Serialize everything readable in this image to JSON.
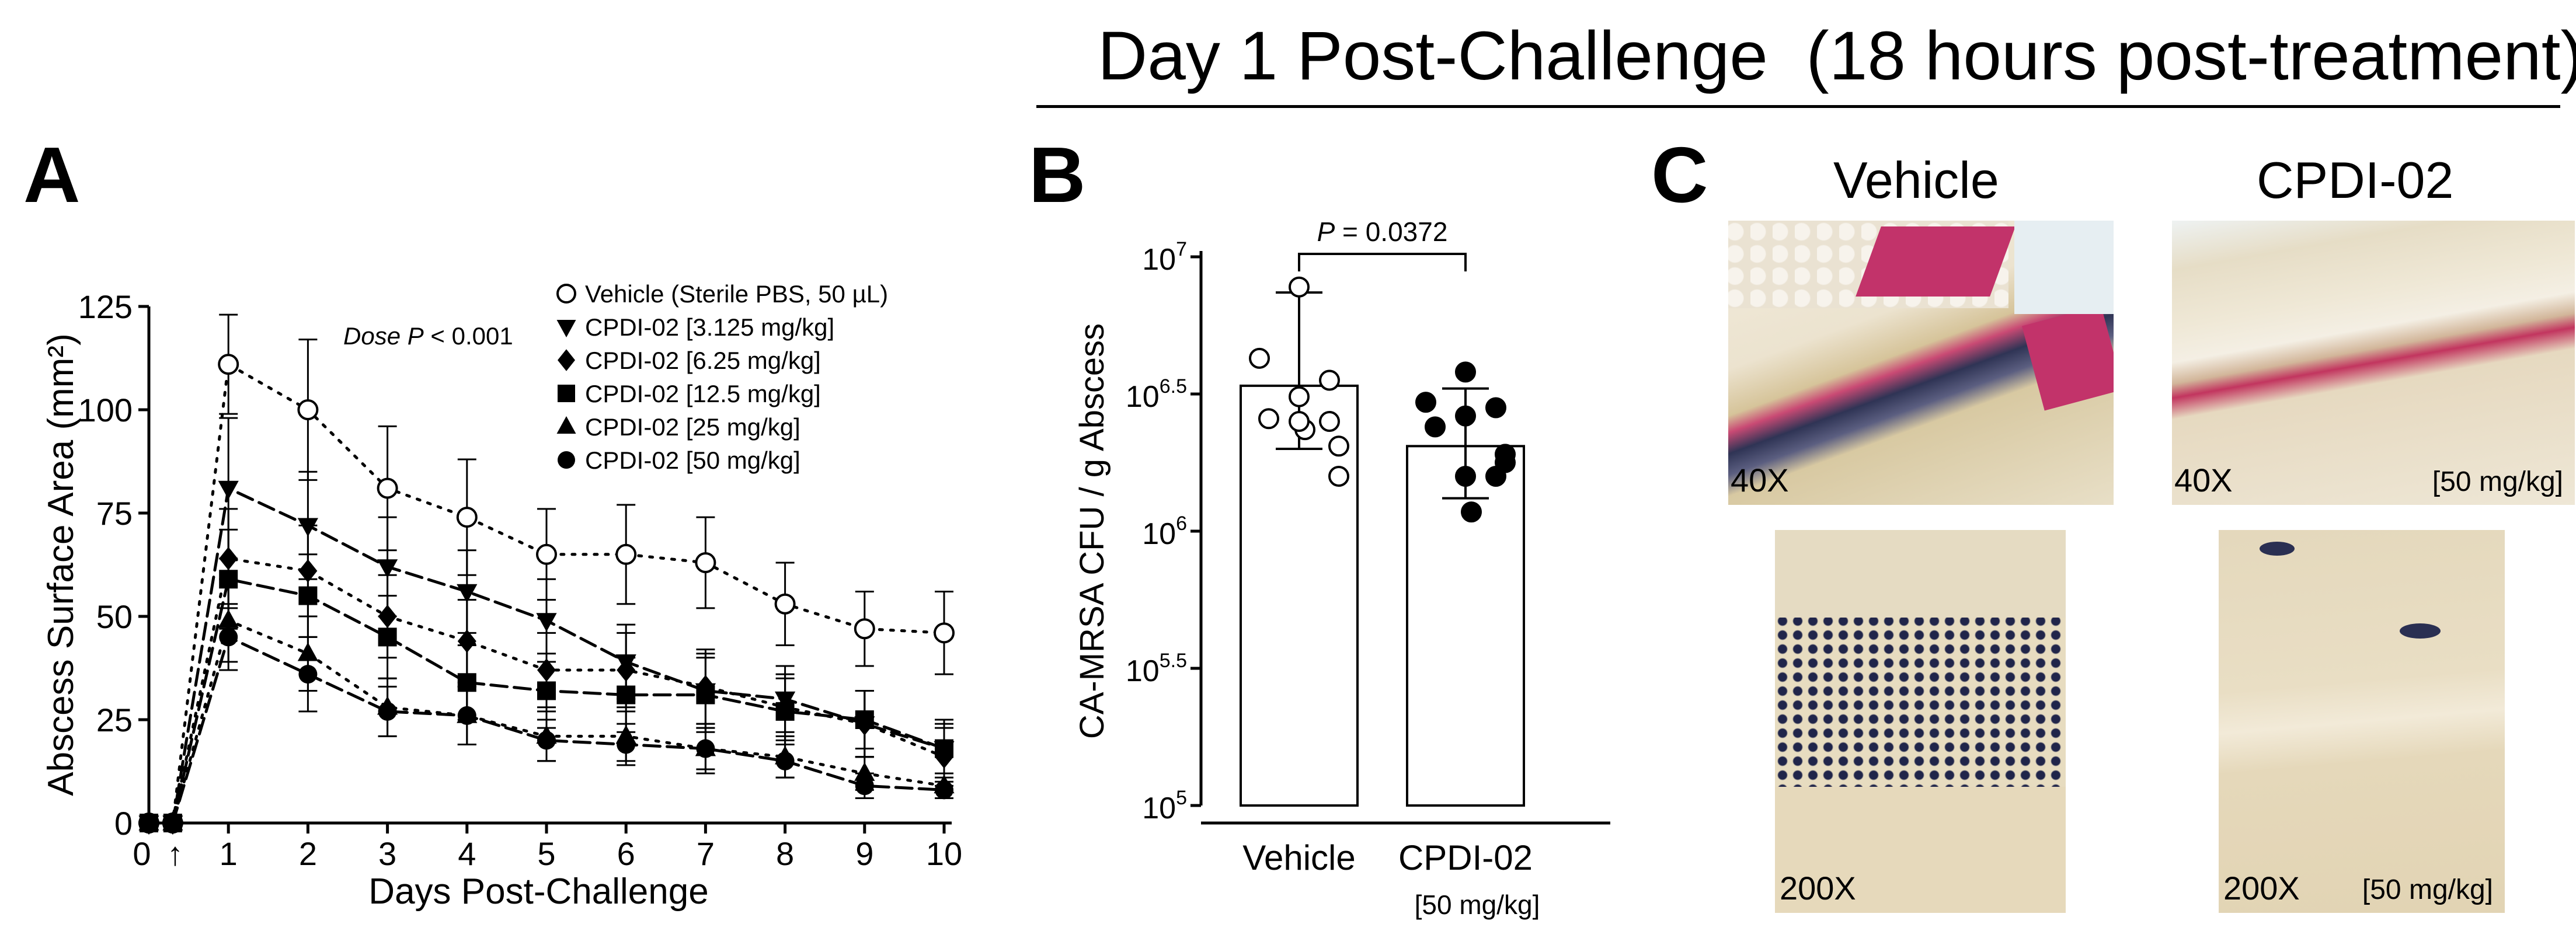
{
  "header": {
    "title": "Day 1 Post-Challenge  (18 hours post-treatment)"
  },
  "panels": {
    "a": "A",
    "b": "B",
    "c": "C"
  },
  "panel_c": {
    "col_vehicle": "Vehicle",
    "col_cpdi": "CPDI-02",
    "mag_40": "40X",
    "mag_200": "200X",
    "dose_label": "[50 mg/kg]"
  },
  "chart_data": [
    {
      "id": "A",
      "type": "line",
      "title": "",
      "xlabel": "Days Post-Challenge",
      "ylabel": "Abscess Surface Area (mm²)",
      "xlim": [
        0,
        10
      ],
      "ylim": [
        0,
        125
      ],
      "x_ticks": [
        0,
        1,
        2,
        3,
        4,
        5,
        6,
        7,
        8,
        9,
        10
      ],
      "y_ticks": [
        0,
        25,
        50,
        75,
        100,
        125
      ],
      "annotation_prefix": "Dose ",
      "annotation_p": "P",
      "annotation_suffix": " < 0.001",
      "arrow": "↑",
      "x": [
        0,
        0.3,
        1,
        2,
        3,
        4,
        5,
        6,
        7,
        8,
        9,
        10
      ],
      "series": [
        {
          "name": "Vehicle (Sterile PBS, 50 µL)",
          "marker": "open-circle",
          "dash": "dotted",
          "values": [
            0,
            0,
            111,
            100,
            81,
            74,
            65,
            65,
            63,
            53,
            47,
            46
          ],
          "errors": [
            0,
            0,
            12,
            17,
            15,
            14,
            11,
            12,
            11,
            10,
            9,
            10
          ]
        },
        {
          "name": "CPDI-02 [3.125 mg/kg]",
          "marker": "triangle-down",
          "dash": "long",
          "values": [
            0,
            0,
            81,
            72,
            62,
            56,
            49,
            39,
            32,
            30,
            24,
            18
          ],
          "errors": [
            0,
            0,
            17,
            13,
            12,
            10,
            10,
            9,
            9,
            8,
            8,
            7
          ]
        },
        {
          "name": "CPDI-02 [6.25 mg/kg]",
          "marker": "diamond",
          "dash": "dotted",
          "values": [
            0,
            0,
            64,
            61,
            50,
            44,
            37,
            37,
            33,
            28,
            24,
            16
          ],
          "errors": [
            0,
            0,
            12,
            11,
            10,
            10,
            9,
            9,
            9,
            8,
            8,
            7
          ]
        },
        {
          "name": "CPDI-02 [12.5 mg/kg]",
          "marker": "square",
          "dash": "long",
          "values": [
            0,
            0,
            59,
            55,
            45,
            34,
            32,
            31,
            31,
            27,
            25,
            18
          ],
          "errors": [
            0,
            0,
            12,
            10,
            10,
            9,
            9,
            9,
            9,
            8,
            7,
            6
          ]
        },
        {
          "name": "CPDI-02 [25 mg/kg]",
          "marker": "triangle-up",
          "dash": "dotted",
          "values": [
            0,
            0,
            49,
            41,
            28,
            26,
            21,
            21,
            18,
            16,
            12,
            9
          ],
          "errors": [
            0,
            0,
            10,
            9,
            7,
            7,
            6,
            6,
            6,
            5,
            4,
            3
          ]
        },
        {
          "name": "CPDI-02 [50 mg/kg]",
          "marker": "filled-circle",
          "dash": "long",
          "values": [
            0,
            0,
            45,
            36,
            27,
            26,
            20,
            19,
            18,
            15,
            9,
            8
          ],
          "errors": [
            0,
            0,
            8,
            9,
            6,
            7,
            5,
            5,
            5,
            4,
            3,
            2
          ]
        }
      ]
    },
    {
      "id": "B",
      "type": "bar",
      "title": "",
      "xlabel": "",
      "ylabel": "CA-MRSA CFU / g Abscess",
      "yscale": "log10",
      "ylim_log10": [
        5,
        7
      ],
      "y_ticks": [
        {
          "base": "10",
          "exp": "5",
          "value": 5
        },
        {
          "base": "10",
          "exp": "5.5",
          "value": 5.5
        },
        {
          "base": "10",
          "exp": "6",
          "value": 6
        },
        {
          "base": "10",
          "exp": "6.5",
          "value": 6.5
        },
        {
          "base": "10",
          "exp": "7",
          "value": 7
        }
      ],
      "categories": [
        "Vehicle",
        "CPDI-02"
      ],
      "category_sublabels": [
        "",
        "[50 mg/kg]"
      ],
      "bar_values_log10": [
        6.53,
        6.31
      ],
      "error_high_log10": [
        6.87,
        6.52
      ],
      "error_low_log10": [
        6.3,
        6.12
      ],
      "points_log10": [
        [
          6.89,
          6.63,
          6.55,
          6.49,
          6.41,
          6.31,
          6.2,
          6.4,
          6.37,
          6.4
        ],
        [
          6.58,
          6.47,
          6.45,
          6.42,
          6.38,
          6.28,
          6.25,
          6.2,
          6.07,
          6.2
        ]
      ],
      "sig_prefix": "P",
      "sig_suffix": " = 0.0372"
    }
  ]
}
